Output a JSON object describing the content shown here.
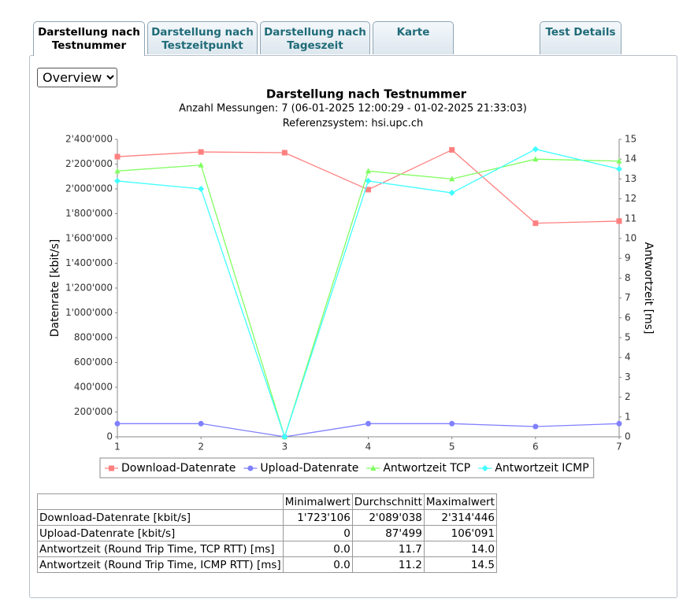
{
  "tabs": [
    {
      "label": "Darstellung nach Testnummer",
      "active": true
    },
    {
      "label": "Darstellung nach Testzeitpunkt",
      "active": false
    },
    {
      "label": "Darstellung nach Tageszeit",
      "active": false
    },
    {
      "label": "Karte",
      "active": false
    },
    {
      "label": "Test Details",
      "active": false
    }
  ],
  "select": {
    "value": "Overview"
  },
  "chart_data": {
    "type": "line",
    "title": "Darstellung nach Testnummer",
    "subtitle": "Anzahl Messungen: 7 (06-01-2025 12:00:29 - 01-02-2025 21:33:03)",
    "subtitle2": "Referenzsystem: hsi.upc.ch",
    "ylabel": "Datenrate [kbit/s]",
    "y2label": "Antwortzeit [ms]",
    "x": [
      1,
      2,
      3,
      4,
      5,
      6,
      7
    ],
    "xlim": [
      1,
      7
    ],
    "xticks": [
      1,
      2,
      3,
      4,
      5,
      6,
      7
    ],
    "ylim": [
      0,
      2400000
    ],
    "yticks": [
      0,
      {
        "value": 200000,
        "label": "200'000"
      },
      {
        "value": 400000,
        "label": "400'000"
      },
      {
        "value": 600000,
        "label": "600'000"
      },
      {
        "value": 800000,
        "label": "800'000"
      },
      {
        "value": 1000000,
        "label": "1'000'000"
      },
      {
        "value": 1200000,
        "label": "1'200'000"
      },
      {
        "value": 1400000,
        "label": "1'400'000"
      },
      {
        "value": 1600000,
        "label": "1'600'000"
      },
      {
        "value": 1800000,
        "label": "1'800'000"
      },
      {
        "value": 2000000,
        "label": "2'000'000"
      },
      {
        "value": 2200000,
        "label": "2'200'000"
      },
      {
        "value": 2400000,
        "label": "2'400'000"
      }
    ],
    "y2lim": [
      0,
      15
    ],
    "y2ticks": [
      0,
      1,
      2,
      3,
      4,
      5,
      6,
      7,
      8,
      9,
      10,
      11,
      12,
      13,
      14,
      15
    ],
    "series": [
      {
        "name": "Download-Datenrate",
        "color": "#ff8080",
        "marker": "square",
        "values": [
          2260000,
          2298000,
          2292000,
          1994000,
          2314446,
          1723106,
          1740000
        ]
      },
      {
        "name": "Upload-Datenrate",
        "color": "#8080ff",
        "marker": "circle",
        "values": [
          106000,
          106091,
          0,
          106000,
          106000,
          82500,
          106000
        ]
      },
      {
        "name": "Antwortzeit TCP",
        "color": "#80ff60",
        "marker": "triangle",
        "axis": "y2",
        "values": [
          13.4,
          13.7,
          0,
          13.4,
          13.0,
          14.0,
          13.9
        ]
      },
      {
        "name": "Antwortzeit ICMP",
        "color": "#40ffff",
        "marker": "diamond",
        "axis": "y2",
        "values": [
          12.9,
          12.5,
          0,
          12.9,
          12.3,
          14.5,
          13.5
        ]
      }
    ]
  },
  "table": {
    "columns": [
      "Minimalwert",
      "Durchschnitt",
      "Maximalwert"
    ],
    "rows": [
      [
        "Download-Datenrate [kbit/s]",
        "1'723'106",
        "2'089'038",
        "2'314'446"
      ],
      [
        "Upload-Datenrate [kbit/s]",
        "0",
        "87'499",
        "106'091"
      ],
      [
        "Antwortzeit (Round Trip Time, TCP RTT) [ms]",
        "0.0",
        "11.7",
        "14.0"
      ],
      [
        "Antwortzeit (Round Trip Time, ICMP RTT) [ms]",
        "0.0",
        "11.2",
        "14.5"
      ]
    ]
  }
}
